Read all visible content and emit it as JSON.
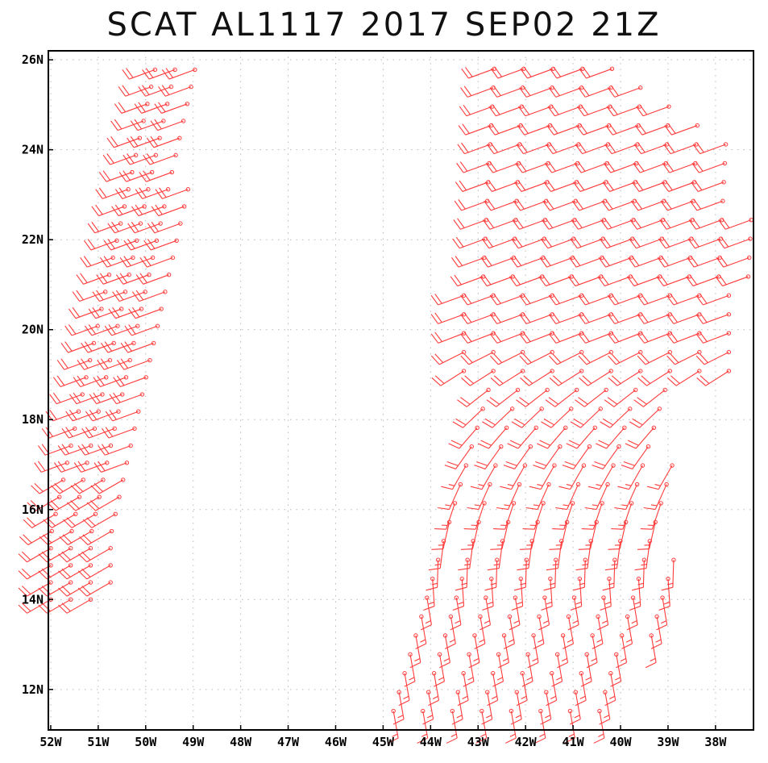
{
  "title": "SCAT AL1117 2017 SEP02 21Z",
  "colors": {
    "barb": "#ff3b3b",
    "grid": "#b8b8b8",
    "frame": "#000000"
  },
  "chart_data": {
    "type": "scatter",
    "subtype": "wind-barbs",
    "title": "SCAT AL1117 2017 SEP02 21Z",
    "xlabel": "",
    "ylabel": "",
    "xlim": [
      "52.05W",
      "37.2W"
    ],
    "ylim": [
      "11.1N",
      "26.2N"
    ],
    "grid": true,
    "x_ticks": [
      "52W",
      "51W",
      "50W",
      "49W",
      "48W",
      "47W",
      "46W",
      "45W",
      "44W",
      "43W",
      "42W",
      "41W",
      "40W",
      "39W",
      "38W"
    ],
    "y_ticks": [
      "12N",
      "14N",
      "16N",
      "18N",
      "20N",
      "22N",
      "24N",
      "26N"
    ],
    "swaths": [
      {
        "name": "",
        "lon_west": -52.05,
        "lon_east": -48.6,
        "lat_south": 14.0,
        "lat_north": 25.8,
        "west_edge_at_south": -51.8,
        "west_edge_at_north": -49.3,
        "east_edge_at_south": -50.8,
        "east_edge_at_north": -48.6,
        "wind_dir_deg": 250,
        "wind_speed_kt": 20
      },
      {
        "name": "",
        "lon_west": -44.9,
        "lon_east": -37.2,
        "lat_south": 11.1,
        "lat_north": 26.0,
        "wind_dir_deg_north": 250,
        "wind_speed_kt_north": 20,
        "wind_dir_deg_south": 170,
        "wind_speed_kt_south": 15
      }
    ]
  }
}
